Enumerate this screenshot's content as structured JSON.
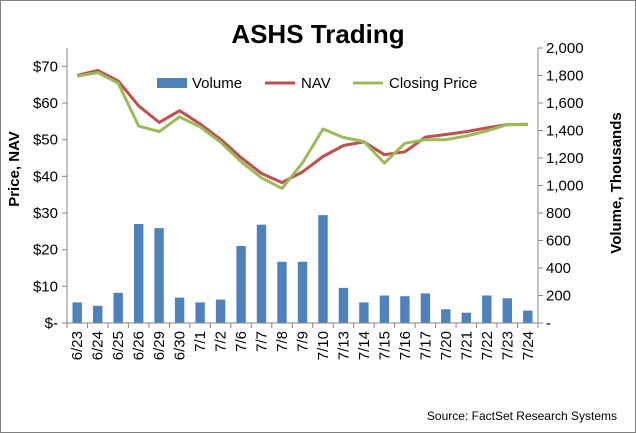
{
  "chart_data": {
    "type": "bar",
    "title": "ASHS Trading",
    "source": "Source: FactSet Research Systems",
    "ylabel_left": "Price, NAV",
    "ylabel_right": "Volume, Thousands",
    "ylim_left": [
      0,
      75
    ],
    "ylim_right": [
      0,
      2000
    ],
    "yticks_left": [
      "$-",
      "$10",
      "$20",
      "$30",
      "$40",
      "$50",
      "$60",
      "$70"
    ],
    "yticks_left_values": [
      0,
      10,
      20,
      30,
      40,
      50,
      60,
      70
    ],
    "yticks_right": [
      "-",
      "200",
      "400",
      "600",
      "800",
      "1,000",
      "1,200",
      "1,400",
      "1,600",
      "1,800",
      "2,000"
    ],
    "yticks_right_values": [
      0,
      200,
      400,
      600,
      800,
      1000,
      1200,
      1400,
      1600,
      1800,
      2000
    ],
    "grid": false,
    "legend_position": "top",
    "categories": [
      "6/23",
      "6/24",
      "6/25",
      "6/26",
      "6/29",
      "6/30",
      "7/1",
      "7/2",
      "7/6",
      "7/7",
      "7/8",
      "7/9",
      "7/10",
      "7/13",
      "7/14",
      "7/15",
      "7/16",
      "7/17",
      "7/20",
      "7/21",
      "7/22",
      "7/23",
      "7/24"
    ],
    "series": [
      {
        "name": "Volume",
        "type": "bar",
        "axis": "right",
        "color": "#4f81bd",
        "values": [
          150,
          125,
          220,
          720,
          690,
          185,
          150,
          170,
          560,
          715,
          445,
          445,
          785,
          255,
          150,
          200,
          195,
          215,
          100,
          75,
          200,
          180,
          90
        ]
      },
      {
        "name": "NAV",
        "type": "line",
        "axis": "left",
        "color": "#c0504d",
        "values": [
          67.5,
          68.9,
          66.0,
          59.2,
          54.7,
          57.9,
          54.3,
          50.1,
          45.1,
          40.8,
          38.3,
          41.2,
          45.4,
          48.4,
          49.4,
          45.9,
          46.7,
          50.7,
          51.4,
          52.2,
          53.2,
          54.1,
          54.2
        ]
      },
      {
        "name": "Closing Price",
        "type": "line",
        "axis": "left",
        "color": "#9bbb59",
        "values": [
          67.3,
          68.3,
          65.4,
          53.7,
          52.2,
          56.2,
          53.5,
          49.3,
          44.0,
          39.6,
          36.7,
          43.7,
          52.9,
          50.6,
          49.5,
          43.6,
          49.0,
          50.0,
          50.0,
          51.0,
          52.4,
          54.1,
          54.1
        ]
      }
    ]
  },
  "colors": {
    "volume": "#4f81bd",
    "nav": "#c0504d",
    "closing_price": "#9bbb59",
    "frame": "#7f7f7f",
    "axis": "#868686"
  }
}
